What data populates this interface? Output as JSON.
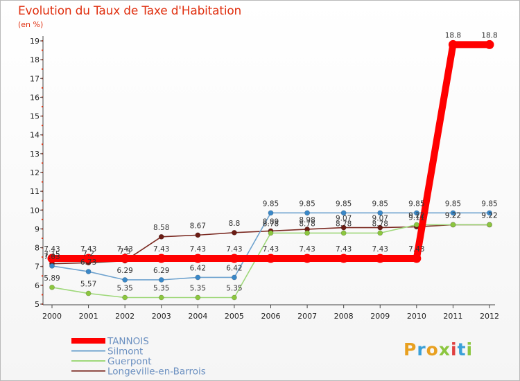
{
  "title": "Evolution du Taux de Taxe d'Habitation",
  "unit": "(en %)",
  "logo": {
    "text": "Proxiti",
    "colors": [
      "#e8a020",
      "#3aa0d8",
      "#e8a020",
      "#8cc63f",
      "#e04040",
      "#3aa0d8",
      "#8cc63f"
    ]
  },
  "chart_data": {
    "type": "line",
    "x": [
      "2000",
      "2001",
      "2002",
      "2003",
      "2004",
      "2005",
      "2006",
      "2007",
      "2008",
      "2009",
      "2010",
      "2011",
      "2012"
    ],
    "ylim": [
      5,
      19
    ],
    "yticks": [
      5,
      6,
      7,
      8,
      9,
      10,
      11,
      12,
      13,
      14,
      15,
      16,
      17,
      18,
      19
    ],
    "grid": false,
    "legend_position": "bottom-left",
    "series": [
      {
        "name": "Longeville-en-Barrois",
        "color": "#7b2a22",
        "point_color": "#6b1c14",
        "values": [
          7.15,
          7.2,
          7.3,
          8.58,
          8.67,
          8.8,
          8.89,
          8.98,
          9.07,
          9.07,
          9.11,
          9.22,
          9.22
        ],
        "labels": [
          "7.15",
          "7.2",
          "7.3",
          "8.58",
          "8.67",
          "8.8",
          "8.89",
          "8.98",
          "9.07",
          "9.07",
          "9.11",
          "9.22",
          "9.22"
        ]
      },
      {
        "name": "Guerpont",
        "color": "#9fd87a",
        "point_color": "#8cc63f",
        "values": [
          5.89,
          5.57,
          5.35,
          5.35,
          5.35,
          5.35,
          8.78,
          8.78,
          8.78,
          8.78,
          9.22,
          9.22,
          9.22
        ],
        "labels": [
          "5.89",
          "5.57",
          "5.35",
          "5.35",
          "5.35",
          "5.35",
          "8.78",
          "8.78",
          "8.78",
          "8.78",
          "9.22",
          "9.22",
          "9.22"
        ]
      },
      {
        "name": "Silmont",
        "color": "#6fa3cf",
        "point_color": "#3a88c8",
        "values": [
          7.03,
          6.73,
          6.29,
          6.29,
          6.42,
          6.42,
          9.85,
          9.85,
          9.85,
          9.85,
          9.85,
          9.85,
          9.85
        ],
        "labels": [
          "7.03",
          "6.73",
          "6.29",
          "6.29",
          "6.42",
          "6.42",
          "9.85",
          "9.85",
          "9.85",
          "9.85",
          "9.85",
          "9.85",
          "9.85"
        ]
      },
      {
        "name": "TANNOIS",
        "color": "#ff0000",
        "point_color": "#ff0000",
        "values": [
          7.43,
          7.43,
          7.43,
          7.43,
          7.43,
          7.43,
          7.43,
          7.43,
          7.43,
          7.43,
          7.43,
          18.8,
          18.8
        ],
        "labels": [
          "7.43",
          "7.43",
          "7.43",
          "7.43",
          "7.43",
          "7.43",
          "7.43",
          "7.43",
          "7.43",
          "7.43",
          "7.43",
          "18.8",
          "18.8"
        ]
      }
    ],
    "legend_order": [
      "TANNOIS",
      "Silmont",
      "Guerpont",
      "Longeville-en-Barrois"
    ]
  }
}
